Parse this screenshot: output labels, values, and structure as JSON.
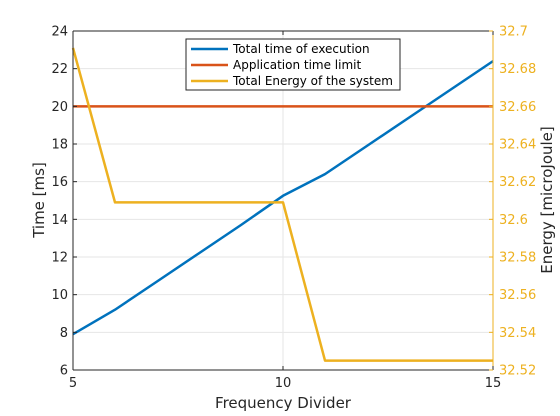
{
  "chart_data": {
    "type": "line",
    "xlabel": "Frequency Divider",
    "ylabel_left": "Time [ms]",
    "ylabel_right": "Energy [microJoule]",
    "xlim": [
      5,
      15
    ],
    "ylim_left": [
      6,
      24
    ],
    "ylim_right": [
      32.52,
      32.7
    ],
    "x_ticks": [
      "5",
      "10",
      "15"
    ],
    "y_ticks_left": [
      "6",
      "8",
      "10",
      "12",
      "14",
      "16",
      "18",
      "20",
      "22",
      "24"
    ],
    "y_ticks_right": [
      "32.52",
      "32.54",
      "32.56",
      "32.58",
      "32.6",
      "32.62",
      "32.64",
      "32.66",
      "32.68",
      "32.7"
    ],
    "grid": true,
    "legend_position": "top-center",
    "series": [
      {
        "name": "Total time of execution",
        "axis": "left",
        "color": "#0072BD",
        "x": [
          5,
          6,
          7,
          8,
          9,
          10,
          11,
          12,
          13,
          14,
          15
        ],
        "y": [
          7.9,
          9.2,
          10.7,
          12.2,
          13.7,
          15.25,
          16.4,
          17.9,
          19.4,
          20.9,
          22.4
        ]
      },
      {
        "name": "Application time limit",
        "axis": "left",
        "color": "#D95319",
        "x": [
          5,
          15
        ],
        "y": [
          20,
          20
        ]
      },
      {
        "name": "Total Energy of the system",
        "axis": "right",
        "color": "#EDB120",
        "x": [
          5,
          6,
          7,
          8,
          9,
          10,
          11,
          12,
          13,
          14,
          15
        ],
        "y": [
          32.691,
          32.609,
          32.609,
          32.609,
          32.609,
          32.609,
          32.525,
          32.525,
          32.525,
          32.525,
          32.525
        ]
      }
    ]
  }
}
